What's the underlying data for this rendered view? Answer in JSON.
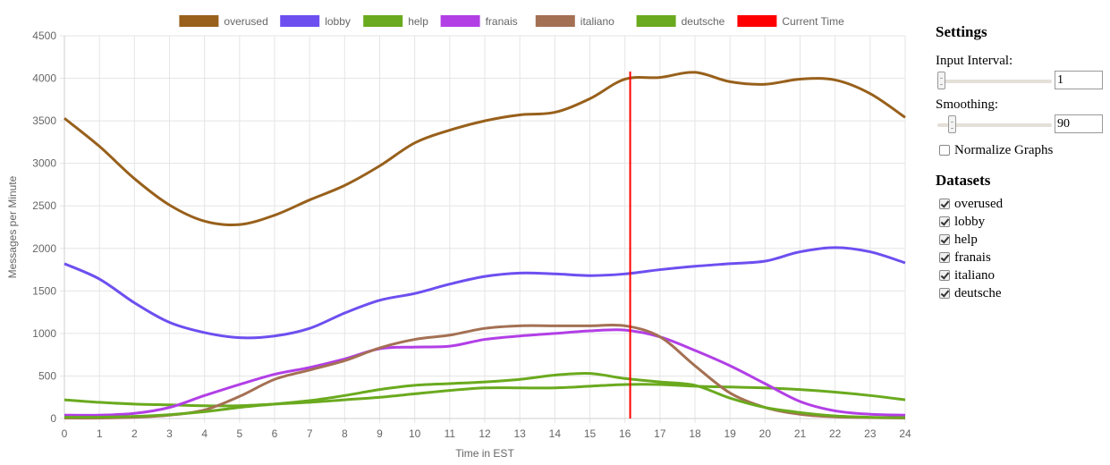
{
  "chart_data": {
    "type": "line",
    "xlabel": "Time in EST",
    "ylabel": "Messages per Minute",
    "xlim": [
      0,
      24
    ],
    "ylim": [
      0,
      4500
    ],
    "x_ticks": [
      0,
      1,
      2,
      3,
      4,
      5,
      6,
      7,
      8,
      9,
      10,
      11,
      12,
      13,
      14,
      15,
      16,
      17,
      18,
      19,
      20,
      21,
      22,
      23,
      24
    ],
    "y_ticks": [
      0,
      500,
      1000,
      1500,
      2000,
      2500,
      3000,
      3500,
      4000,
      4500
    ],
    "grid": true,
    "legend_position": "top",
    "current_time": 16.15,
    "current_time_label": "Current Time",
    "current_time_color": "#ff0000",
    "series": [
      {
        "name": "overused",
        "color": "#98601b",
        "x": [
          0,
          1,
          2,
          3,
          4,
          5,
          6,
          7,
          8,
          9,
          10,
          11,
          12,
          13,
          14,
          15,
          16,
          17,
          18,
          19,
          20,
          21,
          22,
          23,
          24
        ],
        "y": [
          3530,
          3200,
          2820,
          2510,
          2320,
          2280,
          2390,
          2570,
          2740,
          2970,
          3240,
          3390,
          3500,
          3570,
          3600,
          3760,
          3990,
          4010,
          4070,
          3960,
          3930,
          3990,
          3980,
          3820,
          3540
        ]
      },
      {
        "name": "lobby",
        "color": "#6d4ff0",
        "x": [
          0,
          1,
          2,
          3,
          4,
          5,
          6,
          7,
          8,
          9,
          10,
          11,
          12,
          13,
          14,
          15,
          16,
          17,
          18,
          19,
          20,
          21,
          22,
          23,
          24
        ],
        "y": [
          1820,
          1640,
          1360,
          1130,
          1010,
          950,
          970,
          1060,
          1240,
          1390,
          1470,
          1580,
          1670,
          1710,
          1700,
          1680,
          1700,
          1750,
          1790,
          1820,
          1850,
          1960,
          2010,
          1960,
          1830
        ]
      },
      {
        "name": "help",
        "color": "#6aaa1e",
        "x": [
          0,
          1,
          2,
          3,
          4,
          5,
          6,
          7,
          8,
          9,
          10,
          11,
          12,
          13,
          14,
          15,
          16,
          17,
          18,
          19,
          20,
          21,
          22,
          23,
          24
        ],
        "y": [
          220,
          190,
          170,
          160,
          150,
          150,
          170,
          190,
          220,
          250,
          290,
          330,
          360,
          360,
          360,
          380,
          400,
          400,
          380,
          370,
          360,
          340,
          310,
          270,
          220
        ]
      },
      {
        "name": "franais",
        "color": "#b23fe6",
        "x": [
          0,
          1,
          2,
          3,
          4,
          5,
          6,
          7,
          8,
          9,
          10,
          11,
          12,
          13,
          14,
          15,
          16,
          17,
          18,
          19,
          20,
          21,
          22,
          23,
          24
        ],
        "y": [
          40,
          40,
          60,
          130,
          270,
          400,
          520,
          600,
          700,
          820,
          840,
          850,
          930,
          970,
          1000,
          1030,
          1040,
          960,
          800,
          620,
          410,
          200,
          90,
          50,
          40
        ]
      },
      {
        "name": "italiano",
        "color": "#a47053",
        "x": [
          0,
          1,
          2,
          3,
          4,
          5,
          6,
          7,
          8,
          9,
          10,
          11,
          12,
          13,
          14,
          15,
          16,
          17,
          18,
          19,
          20,
          21,
          22,
          23,
          24
        ],
        "y": [
          5,
          5,
          15,
          40,
          100,
          260,
          460,
          570,
          680,
          830,
          930,
          980,
          1060,
          1090,
          1090,
          1090,
          1090,
          960,
          620,
          300,
          130,
          50,
          20,
          10,
          5
        ]
      },
      {
        "name": "deutsche",
        "color": "#6aaa1e",
        "x": [
          0,
          1,
          2,
          3,
          4,
          5,
          6,
          7,
          8,
          9,
          10,
          11,
          12,
          13,
          14,
          15,
          16,
          17,
          18,
          19,
          20,
          21,
          22,
          23,
          24
        ],
        "y": [
          15,
          15,
          25,
          45,
          80,
          130,
          170,
          210,
          270,
          340,
          390,
          410,
          430,
          460,
          510,
          530,
          470,
          430,
          390,
          240,
          130,
          70,
          30,
          15,
          10
        ]
      }
    ]
  },
  "settings": {
    "title": "Settings",
    "input_interval_label": "Input Interval:",
    "input_interval_value": "1",
    "input_interval_fraction": 0.0,
    "smoothing_label": "Smoothing:",
    "smoothing_value": "90",
    "smoothing_fraction": 0.1,
    "normalize_label": "Normalize Graphs",
    "normalize_checked": false
  },
  "datasets": {
    "title": "Datasets",
    "items": [
      {
        "label": "overused",
        "checked": true
      },
      {
        "label": "lobby",
        "checked": true
      },
      {
        "label": "help",
        "checked": true
      },
      {
        "label": "franais",
        "checked": true
      },
      {
        "label": "italiano",
        "checked": true
      },
      {
        "label": "deutsche",
        "checked": true
      }
    ]
  }
}
